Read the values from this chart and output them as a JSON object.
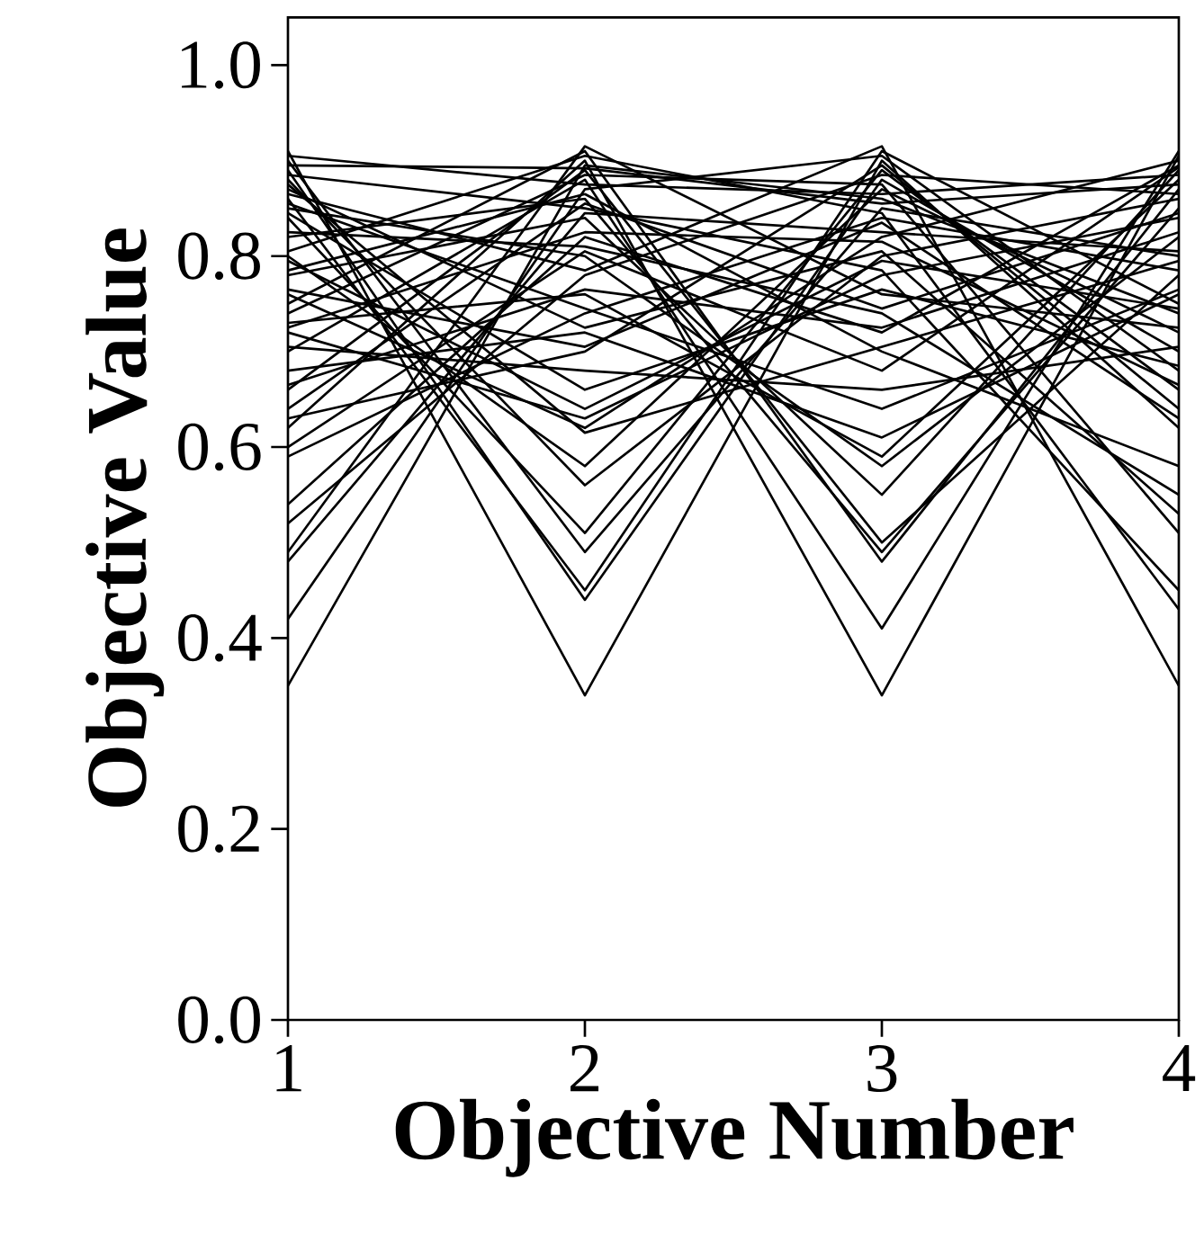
{
  "chart_data": {
    "type": "line",
    "xlabel": "Objective Number",
    "ylabel": "Objective Value",
    "x": [
      1,
      2,
      3,
      4
    ],
    "xlim": [
      1,
      4
    ],
    "xticks": [
      1,
      2,
      3,
      4
    ],
    "ylim": [
      0,
      1.05
    ],
    "yticks": [
      {
        "value": 0,
        "label": "0.0"
      },
      {
        "value": 0.2,
        "label": "0.2"
      },
      {
        "value": 0.4,
        "label": "0.4"
      },
      {
        "value": 0.6,
        "label": "0.6"
      },
      {
        "value": 0.8,
        "label": "0.8"
      },
      {
        "value": 1.0,
        "label": "1.0"
      }
    ],
    "grid": false,
    "marker": "none",
    "line_style": "solid",
    "series": [
      {
        "color": "#000000",
        "values": [
          0.91,
          0.34,
          0.9,
          0.62
        ]
      },
      {
        "color": "#000000",
        "values": [
          0.89,
          0.44,
          0.88,
          0.7
        ]
      },
      {
        "color": "#000000",
        "values": [
          0.86,
          0.45,
          0.91,
          0.75
        ]
      },
      {
        "color": "#000000",
        "values": [
          0.9,
          0.49,
          0.85,
          0.8
        ]
      },
      {
        "color": "#000000",
        "values": [
          0.84,
          0.51,
          0.89,
          0.66
        ]
      },
      {
        "color": "#000000",
        "values": [
          0.88,
          0.56,
          0.8,
          0.86
        ]
      },
      {
        "color": "#000000",
        "values": [
          0.8,
          0.58,
          0.87,
          0.72
        ]
      },
      {
        "color": "#000000",
        "values": [
          0.76,
          0.62,
          0.82,
          0.9
        ]
      },
      {
        "color": "#000000",
        "values": [
          0.72,
          0.63,
          0.78,
          0.84
        ]
      },
      {
        "color": "#000000",
        "values": [
          0.62,
          0.9,
          0.34,
          0.905
        ]
      },
      {
        "color": "#000000",
        "values": [
          0.7,
          0.88,
          0.41,
          0.91
        ]
      },
      {
        "color": "#000000",
        "values": [
          0.75,
          0.91,
          0.48,
          0.87
        ]
      },
      {
        "color": "#000000",
        "values": [
          0.82,
          0.86,
          0.49,
          0.85
        ]
      },
      {
        "color": "#000000",
        "values": [
          0.66,
          0.89,
          0.5,
          0.78
        ]
      },
      {
        "color": "#000000",
        "values": [
          0.78,
          0.84,
          0.55,
          0.89
        ]
      },
      {
        "color": "#000000",
        "values": [
          0.85,
          0.8,
          0.58,
          0.82
        ]
      },
      {
        "color": "#000000",
        "values": [
          0.73,
          0.76,
          0.59,
          0.88
        ]
      },
      {
        "color": "#000000",
        "values": [
          0.68,
          0.72,
          0.61,
          0.76
        ]
      },
      {
        "color": "#000000",
        "values": [
          0.35,
          0.895,
          0.86,
          0.74
        ]
      },
      {
        "color": "#000000",
        "values": [
          0.42,
          0.87,
          0.905,
          0.68
        ]
      },
      {
        "color": "#000000",
        "values": [
          0.48,
          0.845,
          0.825,
          0.805
        ]
      },
      {
        "color": "#000000",
        "values": [
          0.49,
          0.915,
          0.76,
          0.725
        ]
      },
      {
        "color": "#000000",
        "values": [
          0.52,
          0.78,
          0.885,
          0.865
        ]
      },
      {
        "color": "#000000",
        "values": [
          0.54,
          0.82,
          0.72,
          0.895
        ]
      },
      {
        "color": "#000000",
        "values": [
          0.59,
          0.74,
          0.84,
          0.785
        ]
      },
      {
        "color": "#000000",
        "values": [
          0.63,
          0.7,
          0.895,
          0.64
        ]
      },
      {
        "color": "#000000",
        "values": [
          0.865,
          0.785,
          0.915,
          0.35
        ]
      },
      {
        "color": "#000000",
        "values": [
          0.805,
          0.905,
          0.845,
          0.43
        ]
      },
      {
        "color": "#000000",
        "values": [
          0.885,
          0.85,
          0.785,
          0.45
        ]
      },
      {
        "color": "#000000",
        "values": [
          0.74,
          0.885,
          0.875,
          0.51
        ]
      },
      {
        "color": "#000000",
        "values": [
          0.87,
          0.725,
          0.805,
          0.53
        ]
      },
      {
        "color": "#000000",
        "values": [
          0.825,
          0.81,
          0.74,
          0.55
        ]
      },
      {
        "color": "#000000",
        "values": [
          0.785,
          0.865,
          0.7,
          0.58
        ]
      },
      {
        "color": "#000000",
        "values": [
          0.905,
          0.875,
          0.865,
          0.885
        ]
      },
      {
        "color": "#000000",
        "values": [
          0.895,
          0.892,
          0.855,
          0.875
        ]
      },
      {
        "color": "#000000",
        "values": [
          0.705,
          0.68,
          0.66,
          0.705
        ]
      },
      {
        "color": "#000000",
        "values": [
          0.665,
          0.765,
          0.725,
          0.825
        ]
      },
      {
        "color": "#000000",
        "values": [
          0.845,
          0.66,
          0.765,
          0.685
        ]
      },
      {
        "color": "#000000",
        "values": [
          0.765,
          0.705,
          0.835,
          0.63
        ]
      },
      {
        "color": "#000000",
        "values": [
          0.6,
          0.805,
          0.68,
          0.893
        ]
      },
      {
        "color": "#000000",
        "values": [
          0.855,
          0.745,
          0.64,
          0.765
        ]
      },
      {
        "color": "#000000",
        "values": [
          0.725,
          0.825,
          0.815,
          0.665
        ]
      },
      {
        "color": "#000000",
        "values": [
          0.64,
          0.855,
          0.745,
          0.845
        ]
      },
      {
        "color": "#000000",
        "values": [
          0.795,
          0.64,
          0.795,
          0.745
        ]
      },
      {
        "color": "#000000",
        "values": [
          0.875,
          0.615,
          0.705,
          0.795
        ]
      }
    ]
  }
}
